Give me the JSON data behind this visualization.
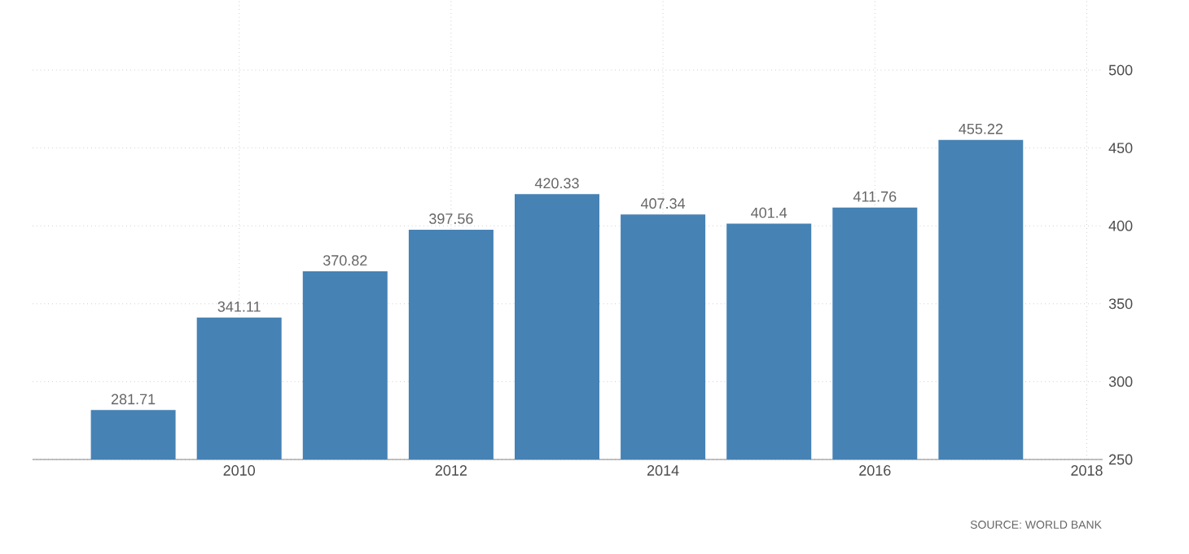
{
  "chart_data": {
    "type": "bar",
    "x": [
      2009,
      2010,
      2011,
      2012,
      2013,
      2014,
      2015,
      2016,
      2017
    ],
    "values": [
      281.71,
      341.11,
      370.82,
      397.56,
      420.33,
      407.34,
      401.4,
      411.76,
      455.22
    ],
    "color": "#4682b4",
    "data_labels": true,
    "xlim": [
      2008.05,
      2018.15
    ],
    "xticks": [
      2010,
      2012,
      2014,
      2016,
      2018
    ],
    "ylim": [
      250,
      545
    ],
    "yticks": [
      250,
      300,
      350,
      400,
      450,
      500
    ],
    "grid": true,
    "annotations": [
      "SOURCE: WORLD BANK"
    ]
  }
}
